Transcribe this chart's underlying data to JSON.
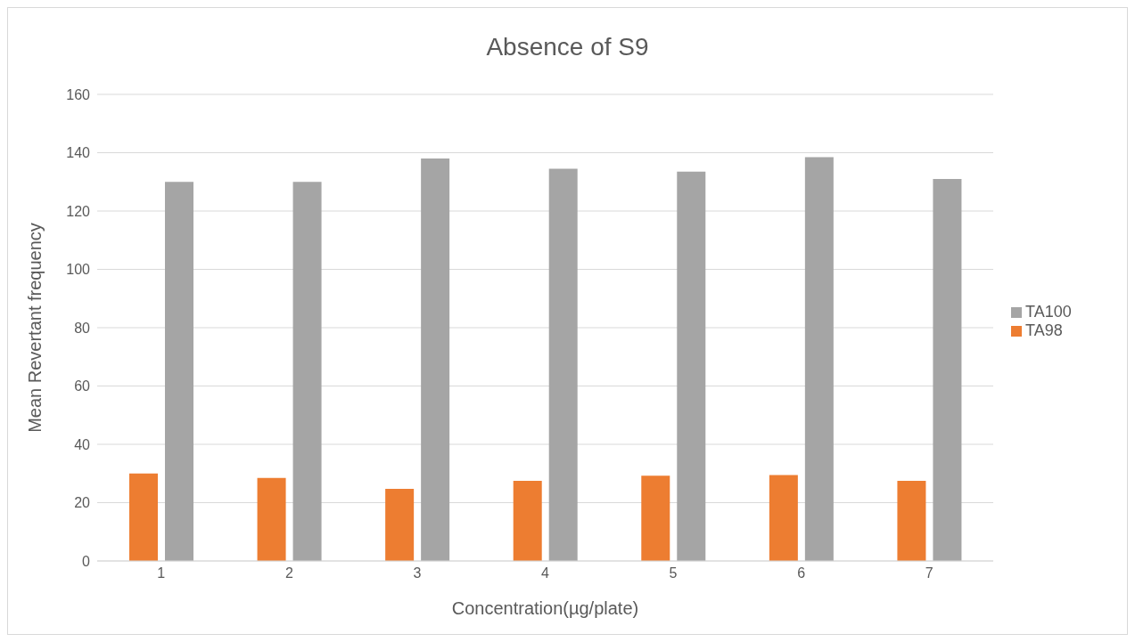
{
  "chart_data": {
    "type": "bar",
    "title": "Absence of S9",
    "xlabel": "Concentration(µg/plate)",
    "ylabel": "Mean Revertant frequency",
    "categories": [
      "1",
      "2",
      "3",
      "4",
      "5",
      "6",
      "7"
    ],
    "series": [
      {
        "name": "TA98",
        "color": "#ed7d31",
        "values": [
          30,
          28.5,
          24.7,
          27.5,
          29.2,
          29.5,
          27.5
        ]
      },
      {
        "name": "TA100",
        "color": "#a5a5a5",
        "values": [
          130,
          130,
          138,
          134.5,
          133.5,
          138.5,
          131
        ]
      }
    ],
    "ylim": [
      0,
      160
    ],
    "yticks": [
      0,
      20,
      40,
      60,
      80,
      100,
      120,
      140,
      160
    ],
    "grid": "y",
    "legend": "right"
  }
}
